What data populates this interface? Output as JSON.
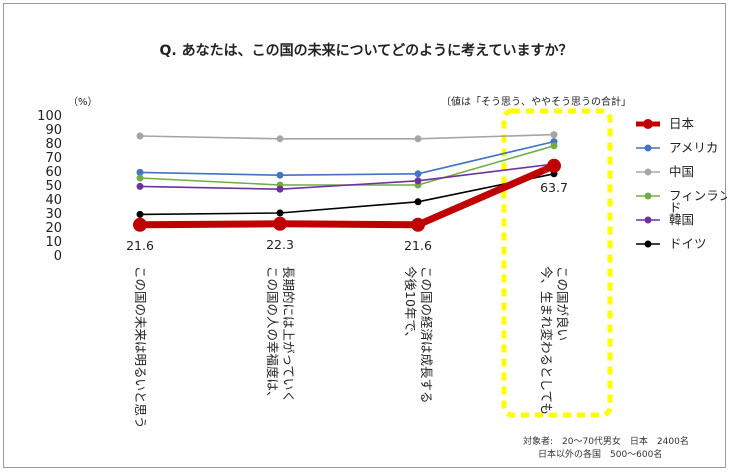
{
  "chart_data": {
    "type": "line",
    "title": "Q. あなたは、この国の未来についてどのように考えていますか？",
    "note": "〔値は「そう思う、ややそう思うの合計」",
    "unit_label": "（%）",
    "ylim": [
      0,
      100
    ],
    "yticks": [
      0,
      10,
      20,
      30,
      40,
      50,
      60,
      70,
      80,
      90,
      100
    ],
    "categories": [
      "この国の未来は明るいと思う",
      "この国の人の幸福度は、\n長期的には上がっていく",
      "今後10年で、\nこの国の経済は成長する",
      "今、生まれ変わるとしても\nこの国が良い"
    ],
    "series": [
      {
        "name": "日本",
        "color": "#c00000",
        "values": [
          21.6,
          22.3,
          21.6,
          63.7
        ],
        "labels": [
          "21.6",
          "22.3",
          "21.6",
          "63.7"
        ],
        "emphasis": true
      },
      {
        "name": "アメリカ",
        "color": "#4472c4",
        "values": [
          59,
          57,
          58,
          81
        ]
      },
      {
        "name": "中国",
        "color": "#a5a5a5",
        "values": [
          85,
          83,
          83,
          86
        ]
      },
      {
        "name": "フィンランド",
        "color": "#70ad47",
        "values": [
          55,
          50,
          50,
          78
        ]
      },
      {
        "name": "韓国",
        "color": "#7030a0",
        "values": [
          49,
          47,
          53,
          65
        ]
      },
      {
        "name": "ドイツ",
        "color": "#000000",
        "values": [
          29,
          30,
          38,
          58
        ]
      }
    ],
    "highlight_category_index": 3,
    "highlight_color": "#ffff00",
    "legend_position": "right",
    "grid": false
  },
  "footnote": {
    "line1": "対象者:　20～70代男女　日本　2400名",
    "line2": "日本以外の各国　500～600名"
  }
}
